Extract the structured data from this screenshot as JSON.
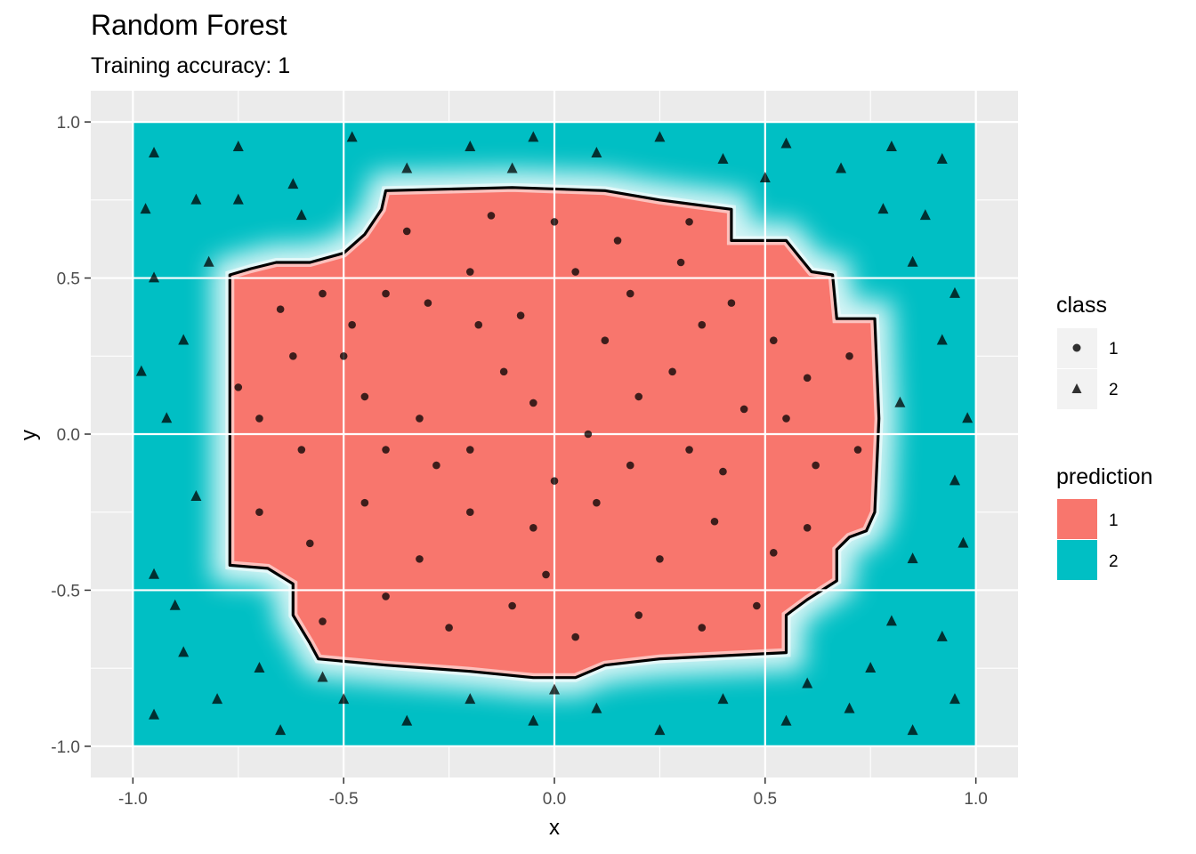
{
  "chart_data": {
    "type": "scatter",
    "title": "Random Forest",
    "subtitle": "Training accuracy: 1",
    "xlabel": "x",
    "ylabel": "y",
    "xlim": [
      -1.1,
      1.1
    ],
    "ylim": [
      -1.1,
      1.1
    ],
    "x_ticks": [
      -1.0,
      -0.5,
      0.0,
      0.5,
      1.0
    ],
    "y_ticks": [
      -1.0,
      -0.5,
      0.0,
      0.5,
      1.0
    ],
    "x_tick_labels": [
      "-1.0",
      "-0.5",
      "0.0",
      "0.5",
      "1.0"
    ],
    "y_tick_labels": [
      "-1.0",
      "-0.5",
      "0.0",
      "0.5",
      "1.0"
    ],
    "grid": true,
    "legend_position": "right",
    "prediction_region": {
      "class_2_extent": {
        "x": [
          -1.0,
          1.0
        ],
        "y": [
          -1.0,
          1.0
        ]
      },
      "class_1_boundary": [
        [
          -0.4,
          0.78
        ],
        [
          -0.1,
          0.79
        ],
        [
          0.12,
          0.78
        ],
        [
          0.25,
          0.75
        ],
        [
          0.42,
          0.72
        ],
        [
          0.42,
          0.62
        ],
        [
          0.55,
          0.62
        ],
        [
          0.58,
          0.57
        ],
        [
          0.61,
          0.52
        ],
        [
          0.66,
          0.51
        ],
        [
          0.67,
          0.37
        ],
        [
          0.76,
          0.37
        ],
        [
          0.77,
          0.05
        ],
        [
          0.76,
          -0.25
        ],
        [
          0.74,
          -0.31
        ],
        [
          0.7,
          -0.33
        ],
        [
          0.67,
          -0.37
        ],
        [
          0.67,
          -0.47
        ],
        [
          0.6,
          -0.53
        ],
        [
          0.55,
          -0.58
        ],
        [
          0.55,
          -0.7
        ],
        [
          0.4,
          -0.71
        ],
        [
          0.25,
          -0.72
        ],
        [
          0.12,
          -0.74
        ],
        [
          0.05,
          -0.78
        ],
        [
          -0.05,
          -0.78
        ],
        [
          -0.2,
          -0.76
        ],
        [
          -0.4,
          -0.74
        ],
        [
          -0.56,
          -0.72
        ],
        [
          -0.58,
          -0.67
        ],
        [
          -0.62,
          -0.58
        ],
        [
          -0.62,
          -0.48
        ],
        [
          -0.68,
          -0.43
        ],
        [
          -0.77,
          -0.42
        ],
        [
          -0.77,
          -0.2
        ],
        [
          -0.77,
          0.51
        ],
        [
          -0.72,
          0.53
        ],
        [
          -0.66,
          0.55
        ],
        [
          -0.58,
          0.55
        ],
        [
          -0.5,
          0.58
        ],
        [
          -0.45,
          0.64
        ],
        [
          -0.41,
          0.72
        ]
      ]
    },
    "series": [
      {
        "name": "1",
        "marker": "circle",
        "points": [
          [
            -0.62,
            0.25
          ],
          [
            -0.55,
            0.45
          ],
          [
            -0.5,
            0.25
          ],
          [
            -0.4,
            0.45
          ],
          [
            -0.3,
            0.42
          ],
          [
            -0.2,
            0.52
          ],
          [
            -0.08,
            0.38
          ],
          [
            0.05,
            0.52
          ],
          [
            0.18,
            0.45
          ],
          [
            0.3,
            0.55
          ],
          [
            0.42,
            0.42
          ],
          [
            0.52,
            0.3
          ],
          [
            0.6,
            0.18
          ],
          [
            -0.7,
            0.05
          ],
          [
            -0.6,
            -0.05
          ],
          [
            -0.45,
            0.12
          ],
          [
            -0.32,
            0.05
          ],
          [
            -0.2,
            -0.05
          ],
          [
            -0.05,
            0.1
          ],
          [
            0.08,
            0.0
          ],
          [
            0.2,
            0.12
          ],
          [
            0.32,
            -0.05
          ],
          [
            0.45,
            0.08
          ],
          [
            0.62,
            -0.1
          ],
          [
            -0.7,
            -0.25
          ],
          [
            -0.58,
            -0.35
          ],
          [
            -0.45,
            -0.22
          ],
          [
            -0.32,
            -0.4
          ],
          [
            -0.2,
            -0.25
          ],
          [
            -0.05,
            -0.3
          ],
          [
            0.1,
            -0.22
          ],
          [
            0.25,
            -0.4
          ],
          [
            0.38,
            -0.28
          ],
          [
            0.52,
            -0.38
          ],
          [
            -0.55,
            -0.6
          ],
          [
            -0.4,
            -0.52
          ],
          [
            -0.25,
            -0.62
          ],
          [
            -0.1,
            -0.55
          ],
          [
            0.05,
            -0.65
          ],
          [
            0.2,
            -0.58
          ],
          [
            0.35,
            -0.62
          ],
          [
            0.48,
            -0.55
          ],
          [
            -0.35,
            0.65
          ],
          [
            -0.15,
            0.7
          ],
          [
            0.0,
            0.68
          ],
          [
            0.15,
            0.62
          ],
          [
            0.32,
            0.68
          ],
          [
            -0.65,
            0.4
          ],
          [
            0.7,
            0.25
          ],
          [
            0.72,
            -0.05
          ],
          [
            -0.75,
            0.15
          ],
          [
            -0.12,
            0.2
          ],
          [
            0.12,
            0.3
          ],
          [
            0.28,
            0.2
          ],
          [
            -0.28,
            -0.1
          ],
          [
            0.4,
            -0.12
          ],
          [
            -0.4,
            -0.05
          ],
          [
            0.55,
            0.05
          ],
          [
            -0.02,
            -0.45
          ],
          [
            0.18,
            -0.1
          ],
          [
            -0.48,
            0.35
          ],
          [
            0.6,
            -0.3
          ],
          [
            -0.18,
            0.35
          ],
          [
            0.35,
            0.35
          ],
          [
            0.0,
            -0.15
          ]
        ]
      },
      {
        "name": "2",
        "marker": "triangle",
        "points": [
          [
            -0.95,
            0.9
          ],
          [
            -0.85,
            0.75
          ],
          [
            -0.75,
            0.92
          ],
          [
            -0.62,
            0.8
          ],
          [
            -0.48,
            0.95
          ],
          [
            -0.35,
            0.85
          ],
          [
            -0.2,
            0.92
          ],
          [
            -0.05,
            0.95
          ],
          [
            0.1,
            0.9
          ],
          [
            0.25,
            0.95
          ],
          [
            0.4,
            0.88
          ],
          [
            0.55,
            0.93
          ],
          [
            0.68,
            0.85
          ],
          [
            0.8,
            0.92
          ],
          [
            0.92,
            0.88
          ],
          [
            -0.95,
            0.5
          ],
          [
            -0.88,
            0.3
          ],
          [
            -0.92,
            0.05
          ],
          [
            -0.85,
            -0.2
          ],
          [
            -0.95,
            -0.45
          ],
          [
            -0.88,
            -0.7
          ],
          [
            -0.82,
            0.55
          ],
          [
            -0.98,
            0.2
          ],
          [
            -0.9,
            -0.55
          ],
          [
            0.85,
            0.55
          ],
          [
            0.92,
            0.3
          ],
          [
            0.82,
            0.1
          ],
          [
            0.95,
            -0.15
          ],
          [
            0.85,
            -0.4
          ],
          [
            0.92,
            -0.65
          ],
          [
            0.88,
            0.7
          ],
          [
            0.98,
            0.05
          ],
          [
            0.8,
            -0.6
          ],
          [
            0.95,
            0.45
          ],
          [
            -0.95,
            -0.9
          ],
          [
            -0.8,
            -0.85
          ],
          [
            -0.65,
            -0.95
          ],
          [
            -0.5,
            -0.85
          ],
          [
            -0.35,
            -0.92
          ],
          [
            -0.2,
            -0.85
          ],
          [
            -0.05,
            -0.92
          ],
          [
            0.1,
            -0.88
          ],
          [
            0.25,
            -0.95
          ],
          [
            0.4,
            -0.85
          ],
          [
            0.55,
            -0.92
          ],
          [
            0.7,
            -0.88
          ],
          [
            0.85,
            -0.95
          ],
          [
            0.95,
            -0.85
          ],
          [
            -0.7,
            -0.75
          ],
          [
            0.75,
            -0.75
          ],
          [
            -0.75,
            0.75
          ],
          [
            0.78,
            0.72
          ],
          [
            -0.55,
            -0.78
          ],
          [
            0.6,
            -0.8
          ],
          [
            -0.6,
            0.7
          ],
          [
            0.5,
            0.82
          ],
          [
            -0.1,
            0.85
          ],
          [
            0.0,
            -0.82
          ],
          [
            -0.97,
            0.72
          ],
          [
            0.97,
            -0.35
          ]
        ]
      }
    ],
    "legends": [
      {
        "title": "class",
        "entries": [
          "1",
          "2"
        ],
        "shapes": [
          "circle",
          "triangle"
        ]
      },
      {
        "title": "prediction",
        "entries": [
          "1",
          "2"
        ],
        "colors": [
          "#F8766D",
          "#00BFC4"
        ]
      }
    ],
    "colors": {
      "prediction_1": "#F8766D",
      "prediction_2": "#00BFC4",
      "panel_background": "#EBEBEB",
      "grid": "#FFFFFF",
      "points": "#000000",
      "boundary": "#000000"
    }
  }
}
